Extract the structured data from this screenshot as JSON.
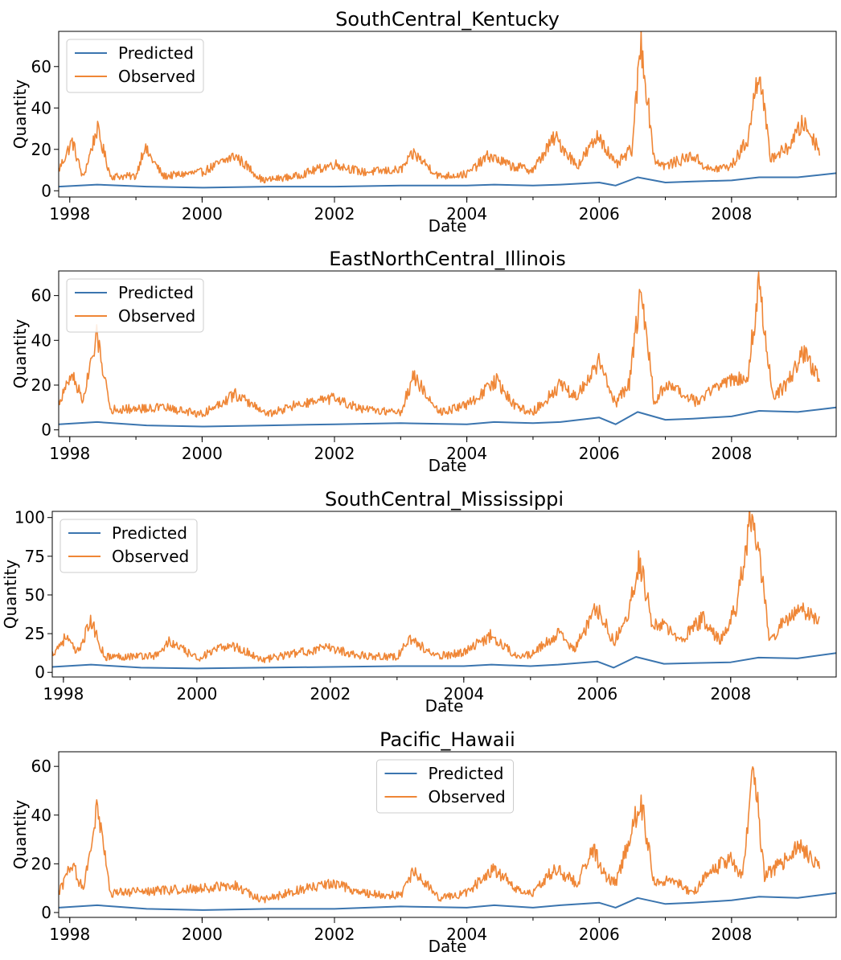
{
  "figure": {
    "width": 1046,
    "height": 1194
  },
  "colors": {
    "predicted": "#3b75af",
    "observed": "#ef8636",
    "axes": "#000000"
  },
  "chart_data": [
    {
      "type": "line",
      "title": "SouthCentral_Kentucky",
      "xlabel": "Date",
      "ylabel": "Quantity",
      "xlim": [
        "1997-11-01",
        "2009-08-01"
      ],
      "ylim": [
        -3,
        77
      ],
      "yticks": [
        0,
        20,
        40,
        60
      ],
      "xticks": [
        "1998",
        "2000",
        "2002",
        "2004",
        "2006",
        "2008"
      ],
      "legend": {
        "loc": "upper-left",
        "entries": [
          "Predicted",
          "Observed"
        ]
      },
      "series": [
        {
          "name": "Predicted",
          "color": "#3b75af",
          "x": [
            "1997-11-01",
            "1998-06-01",
            "1999-03-01",
            "2000-01-01",
            "2001-01-01",
            "2002-01-01",
            "2003-01-01",
            "2004-01-01",
            "2004-06-01",
            "2005-01-01",
            "2005-06-01",
            "2006-01-01",
            "2006-04-01",
            "2006-08-01",
            "2007-01-01",
            "2007-06-01",
            "2008-01-01",
            "2008-06-01",
            "2009-01-01",
            "2009-08-01"
          ],
          "y": [
            2.0,
            3.0,
            2.0,
            1.5,
            2.0,
            2.0,
            2.5,
            2.5,
            3.0,
            2.5,
            3.0,
            4.0,
            2.5,
            6.5,
            4.0,
            4.5,
            5.0,
            6.5,
            6.5,
            8.5
          ]
        },
        {
          "name": "Observed",
          "color": "#ef8636",
          "x": [
            "1997-11-01",
            "1998-01-15",
            "1998-03-15",
            "1998-06-01",
            "1998-08-15",
            "1999-01-01",
            "1999-02-15",
            "1999-06-01",
            "2000-01-01",
            "2000-07-01",
            "2000-12-01",
            "2001-06-01",
            "2002-01-01",
            "2002-06-01",
            "2003-01-01",
            "2003-03-15",
            "2003-08-01",
            "2004-01-01",
            "2004-05-01",
            "2004-09-01",
            "2005-01-01",
            "2005-05-01",
            "2005-09-01",
            "2006-01-01",
            "2006-04-01",
            "2006-07-01",
            "2006-08-20",
            "2006-11-01",
            "2007-01-01",
            "2007-06-01",
            "2007-09-01",
            "2008-01-01",
            "2008-04-01",
            "2008-06-01",
            "2008-08-01",
            "2008-11-01",
            "2009-02-01",
            "2009-05-01"
          ],
          "y": [
            10,
            24,
            6,
            30,
            7,
            7,
            21,
            7,
            9,
            17,
            5,
            7,
            13,
            9,
            10,
            18,
            7,
            8,
            17,
            12,
            10,
            26,
            12,
            27,
            12,
            20,
            72,
            15,
            12,
            17,
            10,
            12,
            25,
            60,
            16,
            20,
            33,
            20
          ]
        }
      ]
    },
    {
      "type": "line",
      "title": "EastNorthCentral_Illinois",
      "xlabel": "Date",
      "ylabel": "Quantity",
      "xlim": [
        "1997-11-01",
        "2009-08-01"
      ],
      "ylim": [
        -3,
        71
      ],
      "yticks": [
        0,
        20,
        40,
        60
      ],
      "xticks": [
        "1998",
        "2000",
        "2002",
        "2004",
        "2006",
        "2008"
      ],
      "legend": {
        "loc": "upper-left",
        "entries": [
          "Predicted",
          "Observed"
        ]
      },
      "series": [
        {
          "name": "Predicted",
          "color": "#3b75af",
          "x": [
            "1997-11-01",
            "1998-06-01",
            "1999-03-01",
            "2000-01-01",
            "2001-01-01",
            "2002-01-01",
            "2003-01-01",
            "2004-01-01",
            "2004-06-01",
            "2005-01-01",
            "2005-06-01",
            "2006-01-01",
            "2006-04-01",
            "2006-08-01",
            "2007-01-01",
            "2007-06-01",
            "2008-01-01",
            "2008-06-01",
            "2009-01-01",
            "2009-08-01"
          ],
          "y": [
            2.5,
            3.5,
            2.0,
            1.5,
            2.0,
            2.5,
            3.0,
            2.5,
            3.5,
            3.0,
            3.5,
            5.5,
            2.5,
            8.0,
            4.5,
            5.0,
            6.0,
            8.5,
            8.0,
            10.0
          ]
        },
        {
          "name": "Observed",
          "color": "#ef8636",
          "x": [
            "1997-11-01",
            "1998-01-15",
            "1998-03-15",
            "1998-06-01",
            "1998-08-15",
            "1999-06-01",
            "2000-01-01",
            "2000-07-01",
            "2001-01-01",
            "2001-06-01",
            "2002-01-01",
            "2002-06-01",
            "2003-01-01",
            "2003-03-15",
            "2003-08-01",
            "2004-01-01",
            "2004-06-15",
            "2004-10-01",
            "2005-01-01",
            "2005-06-01",
            "2005-09-01",
            "2006-01-01",
            "2006-04-01",
            "2006-06-15",
            "2006-08-20",
            "2006-11-01",
            "2007-01-01",
            "2007-07-01",
            "2007-10-01",
            "2008-01-01",
            "2008-04-01",
            "2008-06-01",
            "2008-08-15",
            "2008-11-01",
            "2009-02-01",
            "2009-05-01"
          ],
          "y": [
            12,
            25,
            13,
            42,
            9,
            10,
            7,
            16,
            7,
            11,
            14,
            9,
            8,
            24,
            8,
            11,
            22,
            10,
            8,
            20,
            15,
            30,
            12,
            20,
            63,
            12,
            20,
            12,
            20,
            22,
            25,
            66,
            15,
            20,
            35,
            22
          ]
        }
      ]
    },
    {
      "type": "line",
      "title": "SouthCentral_Mississippi",
      "xlabel": "Date",
      "ylabel": "Quantity",
      "xlim": [
        "1997-11-01",
        "2009-08-01"
      ],
      "ylim": [
        -3,
        104
      ],
      "yticks": [
        0,
        25,
        50,
        75,
        100
      ],
      "xticks": [
        "1998",
        "2000",
        "2002",
        "2004",
        "2006",
        "2008"
      ],
      "legend": {
        "loc": "upper-left",
        "entries": [
          "Predicted",
          "Observed"
        ]
      },
      "series": [
        {
          "name": "Predicted",
          "color": "#3b75af",
          "x": [
            "1997-11-01",
            "1998-06-01",
            "1999-03-01",
            "2000-01-01",
            "2001-01-01",
            "2002-01-01",
            "2003-01-01",
            "2004-01-01",
            "2004-06-01",
            "2005-01-01",
            "2005-06-01",
            "2006-01-01",
            "2006-04-01",
            "2006-08-01",
            "2007-01-01",
            "2007-06-01",
            "2008-01-01",
            "2008-06-01",
            "2009-01-01",
            "2009-08-01"
          ],
          "y": [
            3.5,
            5.0,
            3.0,
            2.5,
            3.0,
            3.5,
            4.0,
            4.0,
            5.0,
            4.0,
            5.0,
            7.0,
            3.0,
            10.0,
            5.5,
            6.0,
            6.5,
            9.5,
            9.0,
            12.5
          ]
        },
        {
          "name": "Observed",
          "color": "#ef8636",
          "x": [
            "1997-11-01",
            "1998-01-15",
            "1998-03-15",
            "1998-06-01",
            "1998-08-15",
            "1999-06-01",
            "1999-08-01",
            "2000-01-01",
            "2000-07-01",
            "2001-01-01",
            "2001-06-01",
            "2002-01-01",
            "2002-06-01",
            "2003-01-01",
            "2003-03-15",
            "2003-08-01",
            "2004-01-01",
            "2004-06-01",
            "2004-10-01",
            "2005-01-01",
            "2005-06-01",
            "2005-09-01",
            "2006-01-01",
            "2006-04-01",
            "2006-06-01",
            "2006-08-20",
            "2006-11-01",
            "2007-01-01",
            "2007-04-01",
            "2007-08-01",
            "2007-11-01",
            "2008-02-01",
            "2008-04-15",
            "2008-06-01",
            "2008-08-01",
            "2008-11-01",
            "2009-02-01",
            "2009-05-01"
          ],
          "y": [
            12,
            23,
            12,
            33,
            10,
            11,
            20,
            9,
            18,
            8,
            12,
            16,
            11,
            10,
            22,
            10,
            13,
            24,
            12,
            11,
            25,
            15,
            42,
            20,
            30,
            73,
            30,
            30,
            20,
            35,
            20,
            42,
            98,
            80,
            20,
            35,
            40,
            33
          ]
        }
      ]
    },
    {
      "type": "line",
      "title": "Pacific_Hawaii",
      "xlabel": "Date",
      "ylabel": "Quantity",
      "xlim": [
        "1997-11-01",
        "2009-08-01"
      ],
      "ylim": [
        -2,
        66
      ],
      "yticks": [
        0,
        20,
        40,
        60
      ],
      "xticks": [
        "1998",
        "2000",
        "2002",
        "2004",
        "2006",
        "2008"
      ],
      "legend": {
        "loc": "upper-center",
        "entries": [
          "Predicted",
          "Observed"
        ]
      },
      "series": [
        {
          "name": "Predicted",
          "color": "#3b75af",
          "x": [
            "1997-11-01",
            "1998-06-01",
            "1999-03-01",
            "2000-01-01",
            "2001-01-01",
            "2002-01-01",
            "2003-01-01",
            "2004-01-01",
            "2004-06-01",
            "2005-01-01",
            "2005-06-01",
            "2006-01-01",
            "2006-04-01",
            "2006-08-01",
            "2007-01-01",
            "2007-06-01",
            "2008-01-01",
            "2008-06-01",
            "2009-01-01",
            "2009-08-01"
          ],
          "y": [
            2.0,
            3.0,
            1.5,
            1.0,
            1.5,
            1.5,
            2.5,
            2.0,
            3.0,
            2.0,
            3.0,
            4.0,
            2.0,
            6.0,
            3.5,
            4.0,
            5.0,
            6.5,
            6.0,
            8.0
          ]
        },
        {
          "name": "Observed",
          "color": "#ef8636",
          "x": [
            "1997-11-01",
            "1998-01-15",
            "1998-03-15",
            "1998-06-01",
            "1998-08-15",
            "1999-06-01",
            "2000-01-01",
            "2000-07-01",
            "2000-12-01",
            "2001-06-01",
            "2002-01-01",
            "2002-06-01",
            "2003-01-01",
            "2003-03-15",
            "2003-08-01",
            "2004-01-01",
            "2004-06-01",
            "2004-10-01",
            "2005-01-01",
            "2005-05-01",
            "2005-09-01",
            "2005-12-01",
            "2006-02-01",
            "2006-04-01",
            "2006-08-20",
            "2006-11-01",
            "2007-02-01",
            "2007-06-01",
            "2007-09-01",
            "2008-01-01",
            "2008-03-01",
            "2008-05-01",
            "2008-07-01",
            "2008-10-01",
            "2009-01-01",
            "2009-05-01"
          ],
          "y": [
            8,
            20,
            9,
            43,
            8,
            9,
            10,
            11,
            5,
            9,
            12,
            8,
            7,
            17,
            6,
            8,
            18,
            10,
            8,
            18,
            12,
            26,
            15,
            12,
            46,
            12,
            14,
            8,
            17,
            22,
            15,
            62,
            15,
            20,
            27,
            20
          ]
        }
      ]
    }
  ]
}
